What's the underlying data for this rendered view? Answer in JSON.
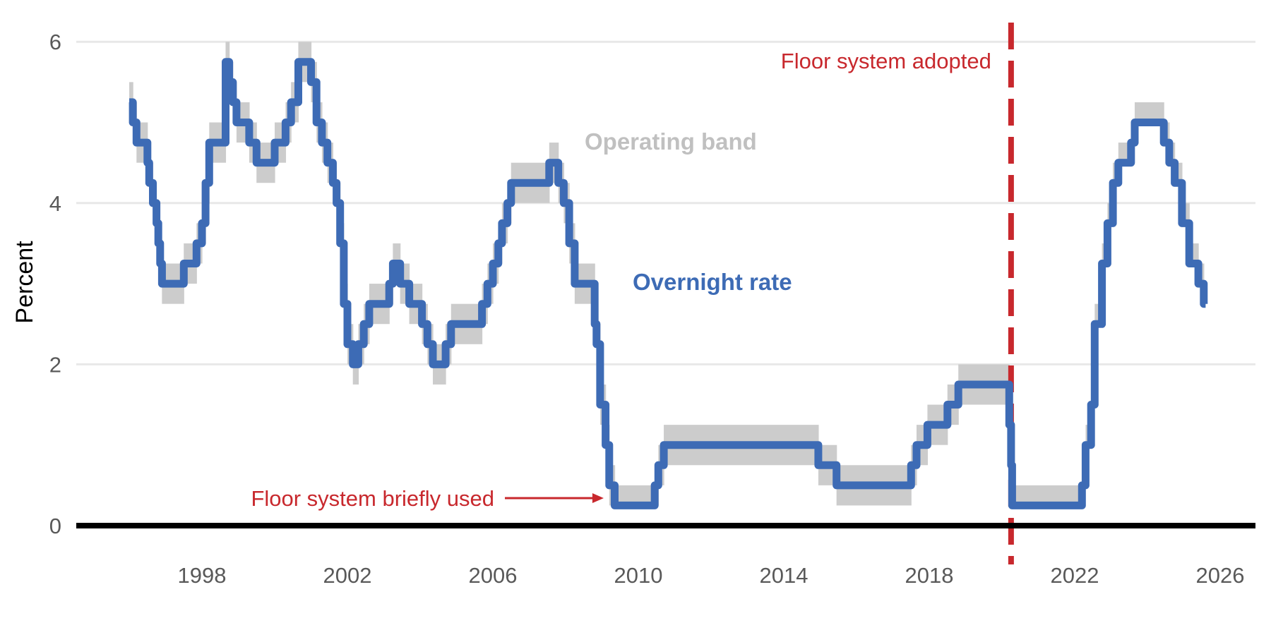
{
  "chart_data": {
    "type": "line",
    "title": "",
    "xlabel": "",
    "ylabel": "Percent",
    "xlim": [
      1995.3,
      2026.3
    ],
    "ylim": [
      0,
      6.2
    ],
    "x_ticks": [
      1998,
      2002,
      2006,
      2010,
      2014,
      2018,
      2022,
      2026
    ],
    "y_ticks": [
      0,
      2,
      4,
      6
    ],
    "grid": "horizontal",
    "legend": "none",
    "colors": {
      "overnight_rate": "#3d6bb5",
      "operating_band": "#cccccc",
      "floor_marker": "#c8282d",
      "grid": "#e8e8e8",
      "zero_line": "#000000"
    },
    "annotations": {
      "floor_adopted": "Floor system adopted",
      "floor_brief": "Floor system briefly used",
      "band_label": "Operating band",
      "rate_label": "Overnight rate"
    },
    "floor_system_adopted_date": 2020.25,
    "floor_system_briefly_used_period": [
      2009.3,
      2010.45
    ],
    "series": [
      {
        "name": "Overnight rate",
        "points": [
          [
            1996.0,
            5.25
          ],
          [
            1996.1,
            5.0
          ],
          [
            1996.2,
            4.75
          ],
          [
            1996.5,
            4.5
          ],
          [
            1996.55,
            4.25
          ],
          [
            1996.65,
            4.0
          ],
          [
            1996.75,
            3.75
          ],
          [
            1996.8,
            3.5
          ],
          [
            1996.85,
            3.25
          ],
          [
            1996.9,
            3.0
          ],
          [
            1997.5,
            3.25
          ],
          [
            1997.85,
            3.5
          ],
          [
            1998.0,
            3.75
          ],
          [
            1998.1,
            4.25
          ],
          [
            1998.2,
            4.75
          ],
          [
            1998.65,
            5.75
          ],
          [
            1998.75,
            5.5
          ],
          [
            1998.85,
            5.25
          ],
          [
            1998.95,
            5.0
          ],
          [
            1999.3,
            4.75
          ],
          [
            1999.5,
            4.5
          ],
          [
            2000.0,
            4.75
          ],
          [
            2000.3,
            5.0
          ],
          [
            2000.45,
            5.25
          ],
          [
            2000.65,
            5.75
          ],
          [
            2001.0,
            5.5
          ],
          [
            2001.15,
            5.0
          ],
          [
            2001.3,
            4.75
          ],
          [
            2001.45,
            4.5
          ],
          [
            2001.6,
            4.25
          ],
          [
            2001.7,
            4.0
          ],
          [
            2001.8,
            3.5
          ],
          [
            2001.9,
            2.75
          ],
          [
            2002.0,
            2.25
          ],
          [
            2002.15,
            2.0
          ],
          [
            2002.3,
            2.25
          ],
          [
            2002.45,
            2.5
          ],
          [
            2002.6,
            2.75
          ],
          [
            2003.15,
            3.0
          ],
          [
            2003.25,
            3.25
          ],
          [
            2003.45,
            3.0
          ],
          [
            2003.7,
            2.75
          ],
          [
            2004.05,
            2.5
          ],
          [
            2004.2,
            2.25
          ],
          [
            2004.35,
            2.0
          ],
          [
            2004.7,
            2.25
          ],
          [
            2004.85,
            2.5
          ],
          [
            2005.7,
            2.75
          ],
          [
            2005.85,
            3.0
          ],
          [
            2006.0,
            3.25
          ],
          [
            2006.15,
            3.5
          ],
          [
            2006.25,
            3.75
          ],
          [
            2006.4,
            4.0
          ],
          [
            2006.5,
            4.25
          ],
          [
            2007.55,
            4.5
          ],
          [
            2007.8,
            4.25
          ],
          [
            2007.95,
            4.0
          ],
          [
            2008.1,
            3.5
          ],
          [
            2008.25,
            3.0
          ],
          [
            2008.8,
            2.5
          ],
          [
            2008.85,
            2.25
          ],
          [
            2008.95,
            1.5
          ],
          [
            2009.1,
            1.0
          ],
          [
            2009.2,
            0.5
          ],
          [
            2009.35,
            0.25
          ],
          [
            2010.45,
            0.5
          ],
          [
            2010.55,
            0.75
          ],
          [
            2010.7,
            1.0
          ],
          [
            2014.95,
            0.75
          ],
          [
            2015.45,
            0.5
          ],
          [
            2017.5,
            0.75
          ],
          [
            2017.65,
            1.0
          ],
          [
            2017.95,
            1.25
          ],
          [
            2018.5,
            1.5
          ],
          [
            2018.8,
            1.75
          ],
          [
            2020.2,
            1.25
          ],
          [
            2020.25,
            0.75
          ],
          [
            2020.28,
            0.25
          ],
          [
            2022.2,
            0.5
          ],
          [
            2022.3,
            1.0
          ],
          [
            2022.45,
            1.5
          ],
          [
            2022.55,
            2.5
          ],
          [
            2022.75,
            3.25
          ],
          [
            2022.9,
            3.75
          ],
          [
            2023.05,
            4.25
          ],
          [
            2023.2,
            4.5
          ],
          [
            2023.55,
            4.75
          ],
          [
            2023.65,
            5.0
          ],
          [
            2024.45,
            4.75
          ],
          [
            2024.6,
            4.5
          ],
          [
            2024.75,
            4.25
          ],
          [
            2024.95,
            3.75
          ],
          [
            2025.15,
            3.25
          ],
          [
            2025.4,
            3.0
          ],
          [
            2025.55,
            2.75
          ],
          [
            2025.6,
            2.75
          ]
        ]
      }
    ]
  }
}
